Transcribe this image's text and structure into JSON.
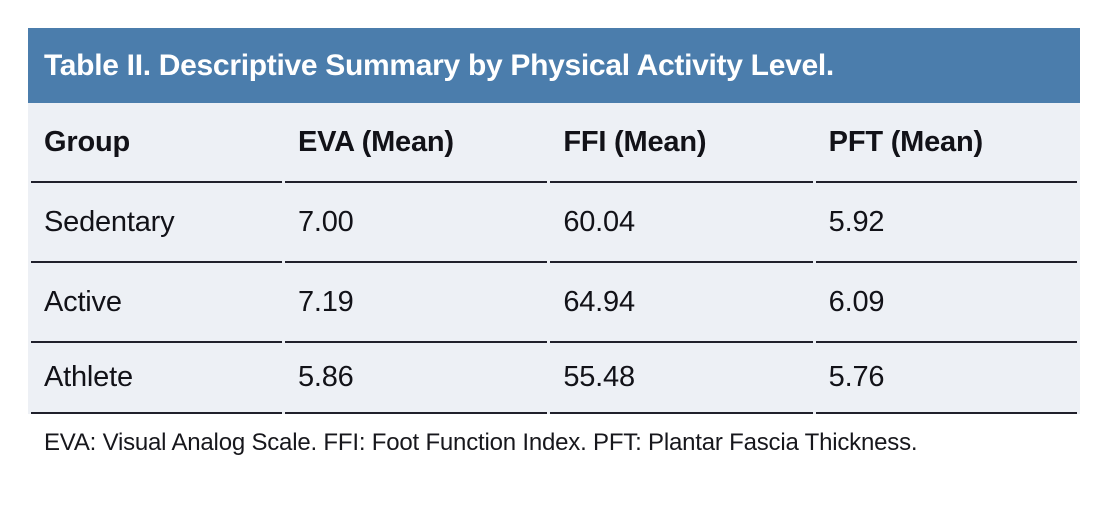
{
  "figure": {
    "title": "Table II. Descriptive Summary by Physical Activity Level.",
    "columns": [
      "Group",
      "EVA (Mean)",
      "FFI (Mean)",
      "PFT (Mean)"
    ],
    "rows": [
      [
        "Sedentary",
        "7.00",
        "60.04",
        "5.92"
      ],
      [
        "Active",
        "7.19",
        "64.94",
        "6.09"
      ],
      [
        "Athlete",
        "5.86",
        "55.48",
        "5.76"
      ]
    ],
    "footnote": "EVA: Visual Analog Scale. FFI: Foot Function Index. PFT: Plantar Fascia Thickness."
  },
  "colors": {
    "title_bar_bg": "#4b7dac",
    "title_text": "#ffffff",
    "table_body_bg": "#edf0f5",
    "divider_line": "#20202b",
    "body_text": "#121218"
  },
  "chart_data": {
    "type": "table",
    "title": "Table II. Descriptive Summary by Physical Activity Level.",
    "columns": [
      "Group",
      "EVA (Mean)",
      "FFI (Mean)",
      "PFT (Mean)"
    ],
    "rows": [
      {
        "group": "Sedentary",
        "eva_mean": 7.0,
        "ffi_mean": 60.04,
        "pft_mean": 5.92
      },
      {
        "group": "Active",
        "eva_mean": 7.19,
        "ffi_mean": 64.94,
        "pft_mean": 6.09
      },
      {
        "group": "Athlete",
        "eva_mean": 5.86,
        "ffi_mean": 55.48,
        "pft_mean": 5.76
      }
    ],
    "footnote": "EVA: Visual Analog Scale. FFI: Foot Function Index. PFT: Plantar Fascia Thickness."
  }
}
